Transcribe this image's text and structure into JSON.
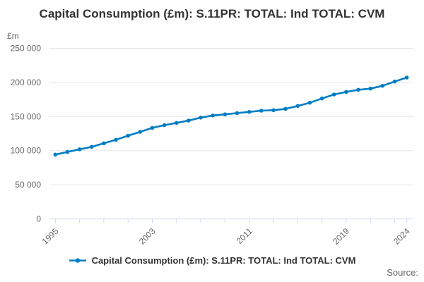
{
  "header": {
    "title": "Capital Consumption (£m): S.11PR: TOTAL: Ind TOTAL: CVM"
  },
  "y_axis": {
    "unit_label": "£m"
  },
  "legend": {
    "label": "Capital Consumption (£m): S.11PR: TOTAL: Ind TOTAL: CVM"
  },
  "footer": {
    "source_label": "Source:"
  },
  "colors": {
    "line": "#007dc3",
    "grid": "#e6e6e6",
    "axis": "#ccd6eb",
    "tick_label": "#666666",
    "title": "#333333",
    "legend_text": "#333333",
    "source_text": "#666666"
  },
  "chart_data": {
    "type": "line",
    "title": "Capital Consumption (£m): S.11PR: TOTAL: Ind TOTAL: CVM",
    "ylabel": "£m",
    "x": [
      1995,
      1996,
      1997,
      1998,
      1999,
      2000,
      2001,
      2002,
      2003,
      2004,
      2005,
      2006,
      2007,
      2008,
      2009,
      2010,
      2011,
      2012,
      2013,
      2014,
      2015,
      2016,
      2017,
      2018,
      2019,
      2020,
      2021,
      2022,
      2023,
      2024
    ],
    "series": [
      {
        "name": "Capital Consumption (£m): S.11PR: TOTAL: Ind TOTAL: CVM",
        "color": "#007dc3",
        "values": [
          94200,
          98100,
          102000,
          105600,
          110700,
          115900,
          121900,
          127600,
          133400,
          137400,
          140700,
          144100,
          148400,
          151600,
          153200,
          155100,
          156800,
          158600,
          159300,
          161300,
          165500,
          170200,
          176400,
          182300,
          186100,
          189200,
          190900,
          195000,
          201200,
          207100
        ]
      }
    ],
    "ylim": [
      0,
      250000
    ],
    "y_ticks": [
      0,
      50000,
      100000,
      150000,
      200000,
      250000
    ],
    "y_tick_labels": [
      "0",
      "50 000",
      "100 000",
      "150 000",
      "200 000",
      "250 000"
    ],
    "x_ticks": [
      1995,
      1997,
      1999,
      2001,
      2003,
      2005,
      2007,
      2009,
      2011,
      2013,
      2015,
      2017,
      2019,
      2021,
      2023,
      2024
    ],
    "x_labeled_ticks": [
      "1995",
      "2003",
      "2011",
      "2019",
      "2024"
    ],
    "grid": "horizontal-only",
    "legend_position": "bottom",
    "marker": "circle"
  }
}
